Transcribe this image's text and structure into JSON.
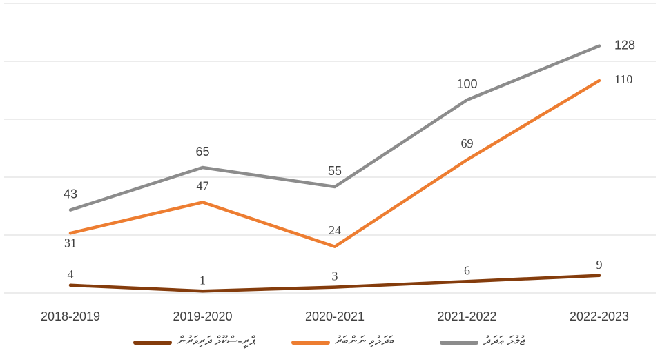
{
  "chart_data": {
    "type": "line",
    "categories": [
      "2018-2019",
      "2019-2020",
      "2020-2021",
      "2021-2022",
      "2022-2023"
    ],
    "series": [
      {
        "name": "ޖުމުލަ ޢަދަދު",
        "color": "#8c8c8c",
        "values": [
          43,
          65,
          55,
          100,
          128
        ]
      },
      {
        "name": "ބަދަލުވި ނަންބަރު",
        "color": "#ed7d31",
        "values": [
          31,
          47,
          24,
          69,
          110
        ]
      },
      {
        "name": "ޕްރީ-ސްކޫލް ދަރިވަރުން",
        "color": "#843c0c",
        "values": [
          4,
          1,
          3,
          6,
          9
        ]
      }
    ],
    "ylim": [
      0,
      150
    ],
    "yticks": [
      0,
      30,
      60,
      90,
      120,
      150
    ],
    "grid": true
  }
}
